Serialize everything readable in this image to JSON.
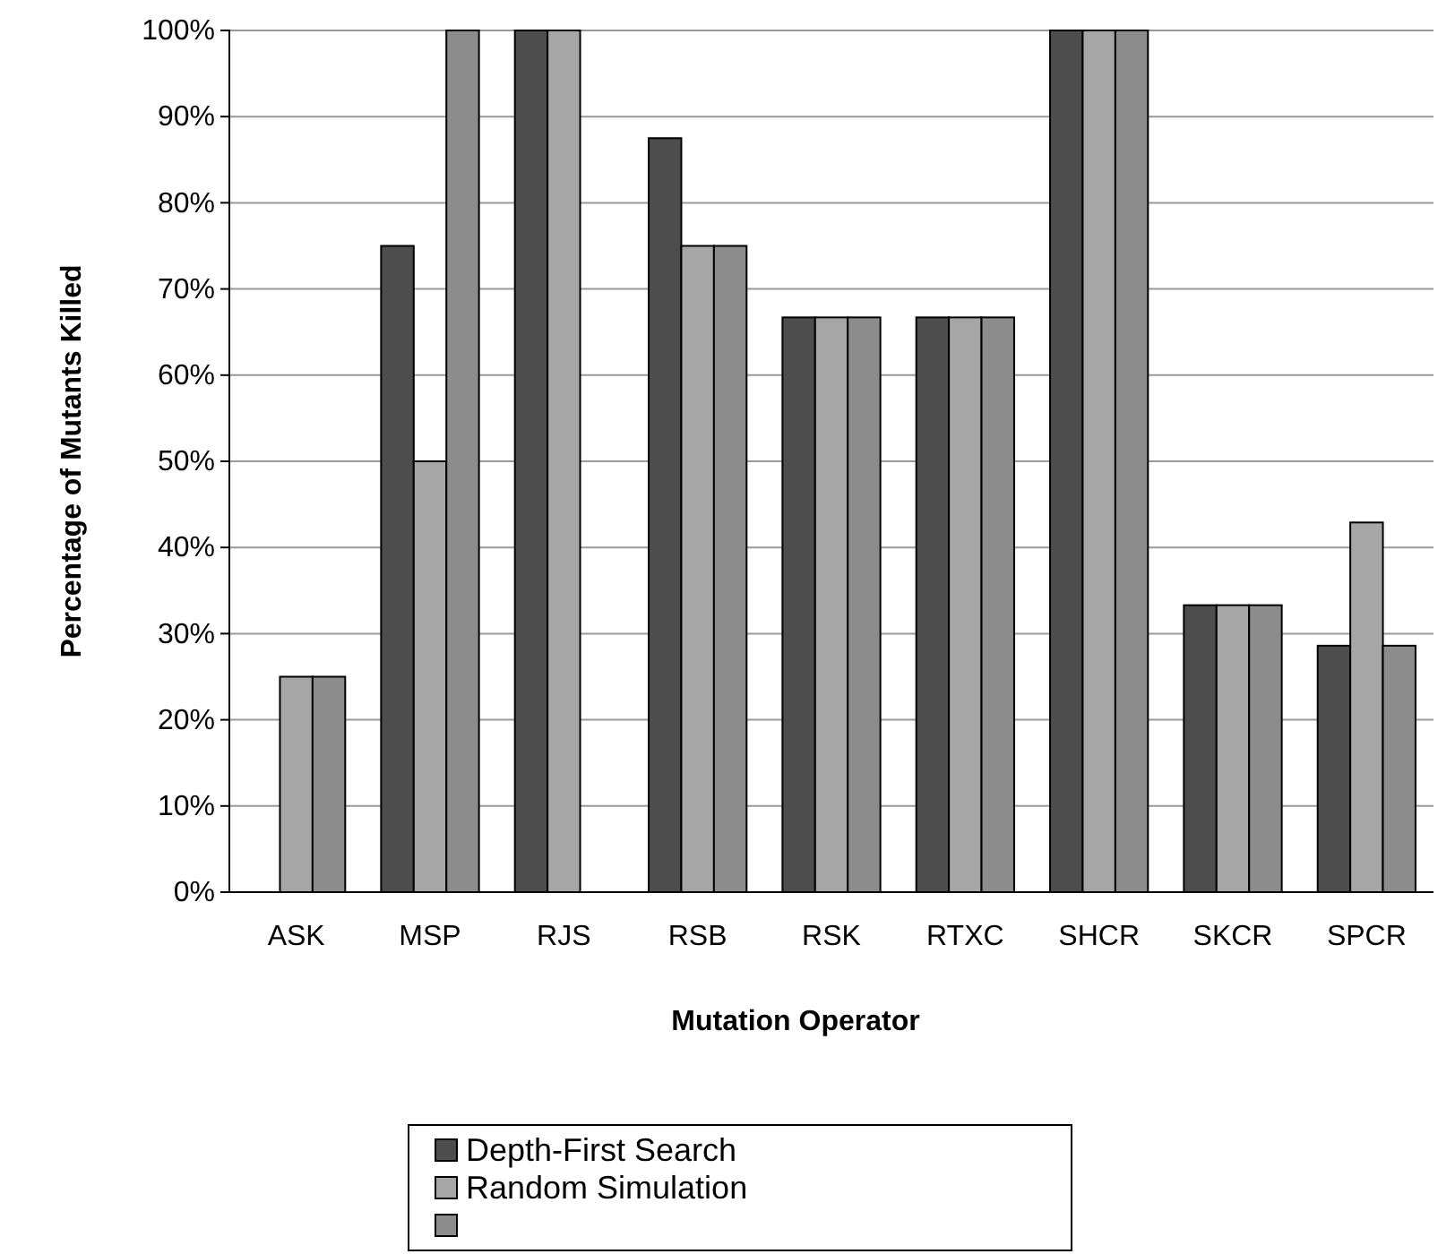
{
  "chart_data": {
    "type": "bar",
    "xlabel": "Mutation Operator",
    "ylabel": "Percentage of Mutants Killed",
    "categories": [
      "ASK",
      "MSP",
      "RJS",
      "RSB",
      "RSK",
      "RTXC",
      "SHCR",
      "SKCR",
      "SPCR"
    ],
    "series": [
      {
        "name": "Depth-First Search",
        "color": "#4d4d4d",
        "values": [
          0,
          75,
          100,
          87.5,
          66.7,
          66.7,
          100,
          33.3,
          28.6
        ]
      },
      {
        "name": "Random Simulation",
        "color": "#a6a6a6",
        "values": [
          25,
          50,
          100,
          75,
          66.7,
          66.7,
          100,
          33.3,
          42.9
        ]
      },
      {
        "color": "#8c8c8c",
        "values": [
          25,
          100,
          0,
          75,
          66.7,
          66.7,
          100,
          33.3,
          28.6
        ]
      }
    ],
    "ylim": [
      0,
      100
    ],
    "yticks": [
      {
        "value": 0,
        "label": "0%"
      },
      {
        "value": 10,
        "label": "10%"
      },
      {
        "value": 20,
        "label": "20%"
      },
      {
        "value": 30,
        "label": "30%"
      },
      {
        "value": 40,
        "label": "40%"
      },
      {
        "value": 50,
        "label": "50%"
      },
      {
        "value": 60,
        "label": "60%"
      },
      {
        "value": 70,
        "label": "70%"
      },
      {
        "value": 80,
        "label": "80%"
      },
      {
        "value": 90,
        "label": "90%"
      },
      {
        "value": 100,
        "label": "100%"
      }
    ],
    "grid": "y",
    "legend": "bottom"
  }
}
